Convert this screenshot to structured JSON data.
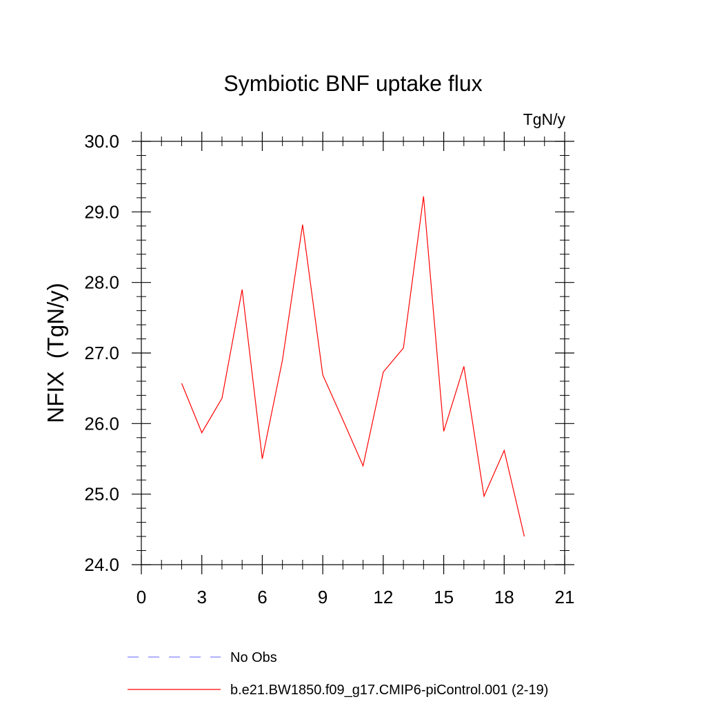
{
  "chart_data": {
    "type": "line",
    "title": "Symbiotic BNF uptake flux",
    "units": "TgN/y",
    "ylabel": "NFIX  (TgN/y)",
    "xlabel": "",
    "xlim": [
      0,
      21
    ],
    "ylim": [
      24.0,
      30.0
    ],
    "x_ticks": [
      0,
      3,
      6,
      9,
      12,
      15,
      18,
      21
    ],
    "y_ticks": [
      24.0,
      25.0,
      26.0,
      27.0,
      28.0,
      29.0,
      30.0
    ],
    "x_minor_step": 1,
    "y_minor_step": 0.2,
    "grid": false,
    "legend_position": "bottom",
    "series": [
      {
        "name": "No Obs",
        "color": "#8080ff",
        "dash": "dashed",
        "x": [],
        "y": []
      },
      {
        "name": "b.e21.BW1850.f09_g17.CMIP6-piControl.001 (2-19)",
        "color": "#ff0000",
        "dash": "solid",
        "x": [
          2,
          3,
          4,
          5,
          6,
          7,
          8,
          9,
          10,
          11,
          12,
          13,
          14,
          15,
          16,
          17,
          18,
          19
        ],
        "y": [
          26.57,
          25.87,
          26.36,
          27.9,
          25.5,
          26.9,
          28.82,
          26.69,
          26.05,
          25.4,
          26.73,
          27.07,
          29.22,
          25.89,
          26.81,
          24.97,
          25.62,
          24.4
        ]
      }
    ]
  }
}
